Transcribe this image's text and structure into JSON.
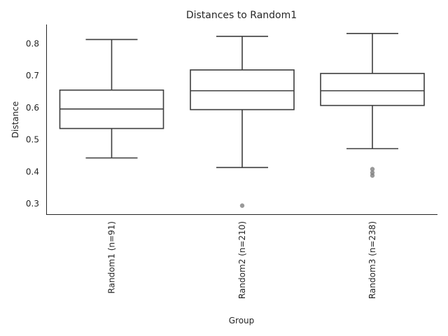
{
  "chart_data": {
    "type": "box",
    "title": "Distances to Random1",
    "xlabel": "Group",
    "ylabel": "Distance",
    "ylim": [
      0.265,
      0.86
    ],
    "yticks": [
      0.3,
      0.4,
      0.5,
      0.6,
      0.7,
      0.8
    ],
    "ytick_labels": [
      "0.3",
      "0.4",
      "0.5",
      "0.6",
      "0.7",
      "0.8"
    ],
    "grid": false,
    "series": [
      {
        "label": "Random1 (n=91)",
        "whisker_low": 0.443,
        "q1": 0.535,
        "median": 0.596,
        "q3": 0.655,
        "whisker_high": 0.813,
        "outliers": []
      },
      {
        "label": "Random2 (n=210)",
        "whisker_low": 0.413,
        "q1": 0.594,
        "median": 0.653,
        "q3": 0.718,
        "whisker_high": 0.823,
        "outliers": [
          0.294
        ]
      },
      {
        "label": "Random3 (n=238)",
        "whisker_low": 0.472,
        "q1": 0.607,
        "median": 0.653,
        "q3": 0.707,
        "whisker_high": 0.832,
        "outliers": [
          0.388,
          0.397,
          0.408
        ]
      }
    ]
  }
}
